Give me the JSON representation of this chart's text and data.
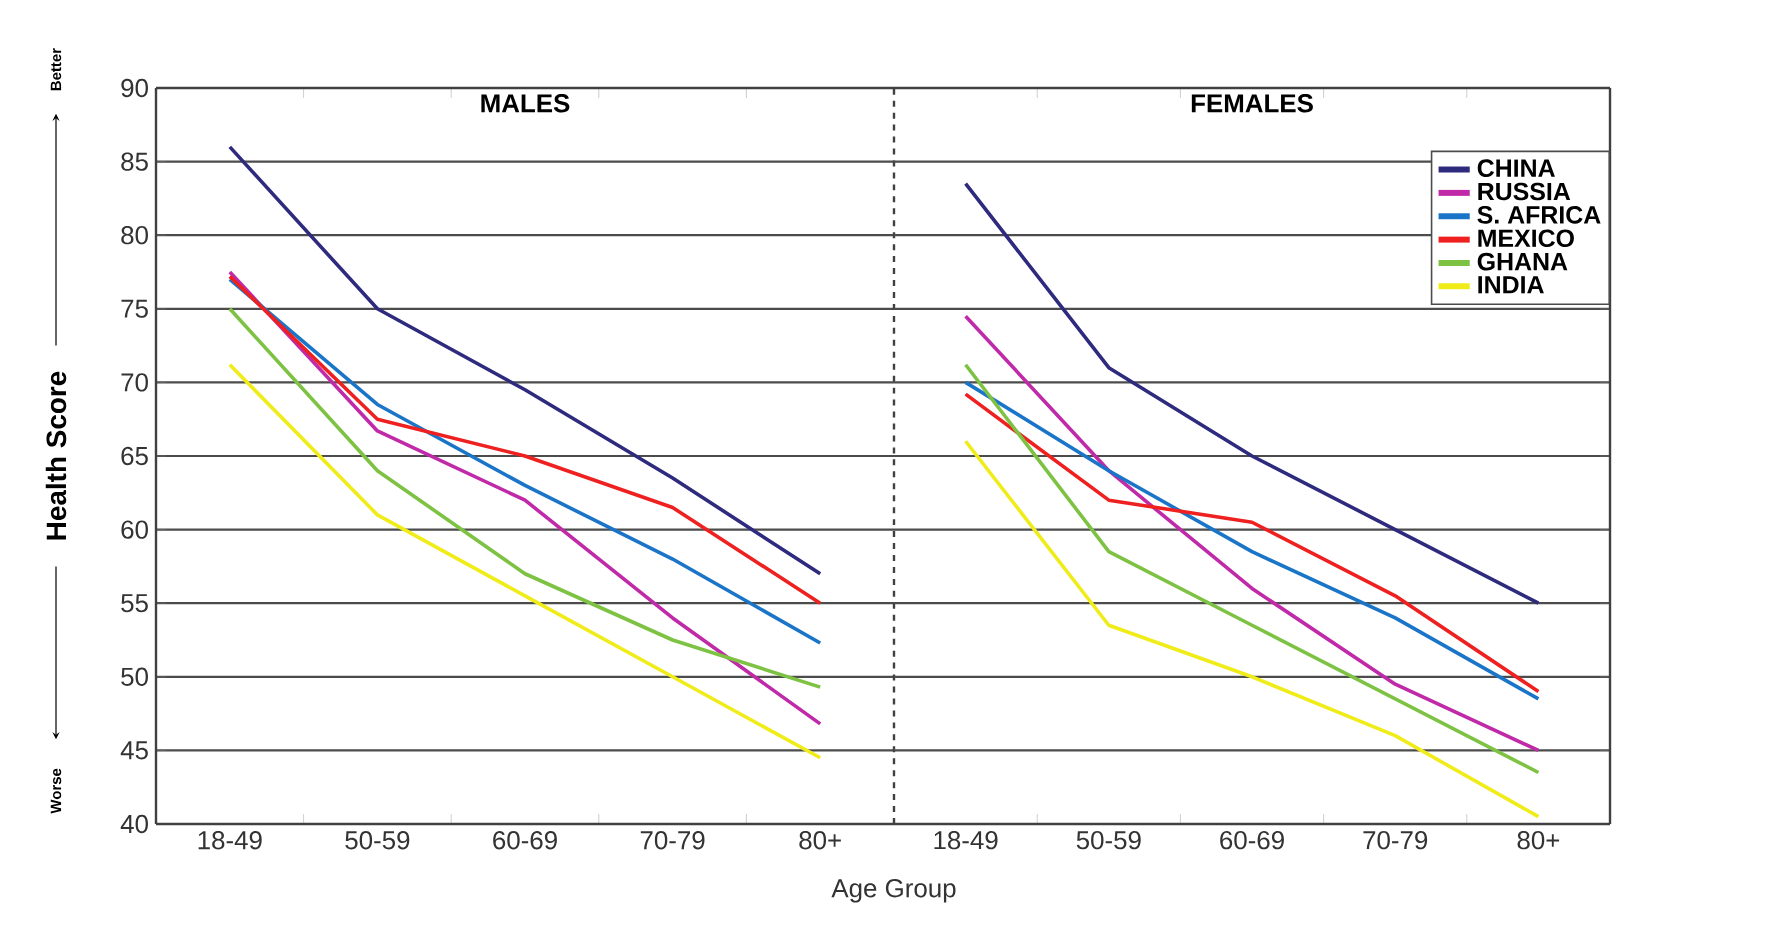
{
  "chart_data": [
    {
      "type": "line",
      "title": "MALES",
      "xlabel": "Age Group",
      "ylabel": "Health Score",
      "annotations": [
        "Better",
        "Worse"
      ],
      "categories": [
        "18-49",
        "50-59",
        "60-69",
        "70-79",
        "80+"
      ],
      "ylim": [
        40,
        90
      ],
      "yticks": [
        40,
        45,
        50,
        55,
        60,
        65,
        70,
        75,
        80,
        85,
        90
      ],
      "grid": "y",
      "series": [
        {
          "color": "#2e2a7e",
          "values": [
            86,
            75,
            69.5,
            63.5,
            57
          ]
        },
        {
          "color": "#c02aa8",
          "values": [
            77.5,
            66.7,
            62,
            54,
            46.8
          ]
        },
        {
          "color": "#1a75c8",
          "values": [
            77,
            68.5,
            63,
            58,
            52.3
          ]
        },
        {
          "color": "#ee2020",
          "values": [
            77.2,
            67.5,
            65,
            61.5,
            55
          ]
        },
        {
          "color": "#7dc242",
          "values": [
            75,
            64,
            57,
            52.5,
            49.3
          ]
        },
        {
          "color": "#f0ec1a",
          "values": [
            71.2,
            61,
            55.5,
            50,
            44.5
          ]
        }
      ]
    },
    {
      "type": "line",
      "title": "FEMALES",
      "categories": [
        "18-49",
        "50-59",
        "60-69",
        "70-79",
        "80+"
      ],
      "ylim": [
        40,
        90
      ],
      "yticks": [
        40,
        45,
        50,
        55,
        60,
        65,
        70,
        75,
        80,
        85,
        90
      ],
      "grid": "y",
      "tick_labels": "x",
      "legend": "top right",
      "series": [
        {
          "name": "CHINA",
          "color": "#2e2a7e",
          "values": [
            83.5,
            71,
            65,
            60,
            55
          ]
        },
        {
          "name": "RUSSIA",
          "color": "#c02aa8",
          "values": [
            74.5,
            64,
            56,
            49.5,
            45
          ]
        },
        {
          "name": "S. AFRICA",
          "color": "#1a75c8",
          "values": [
            70,
            64,
            58.5,
            54,
            48.5
          ]
        },
        {
          "name": "MEXICO",
          "color": "#ee2020",
          "values": [
            69.2,
            62,
            60.5,
            55.5,
            49
          ]
        },
        {
          "name": "GHANA",
          "color": "#7dc242",
          "values": [
            71.2,
            58.5,
            53.5,
            48.5,
            43.5
          ]
        },
        {
          "name": "INDIA",
          "color": "#f0ec1a",
          "values": [
            66,
            53.5,
            50,
            46,
            40.5
          ]
        }
      ]
    }
  ]
}
